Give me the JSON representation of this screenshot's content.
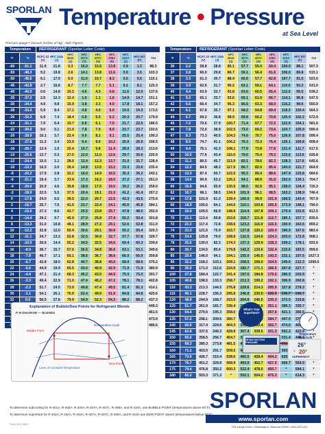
{
  "logo": {
    "text": "SPORLAN"
  },
  "title": {
    "part1": "Temperature",
    "dot": "•",
    "part2": "Pressure",
    "subtitle": "at Sea Level"
  },
  "legend": "Pressure gauge • Vacuum (inches of Hg) - Italic Figures",
  "columns_left": {
    "temp": "Temperature",
    "refrigerant": "REFRIGERANT",
    "code": "(Sporlan Letter Code)",
    "f": "°F",
    "c": "°C",
    "refs": [
      {
        "name": "HCFC 22",
        "code": "(V)"
      },
      {
        "name": "HFC 134a",
        "code": "(J)"
      },
      {
        "name": "HFC 404A",
        "code": "(S)"
      },
      {
        "name": "HFC 407A",
        "code": "(V)"
      },
      {
        "name": "HFC 407C",
        "code": "(N)"
      },
      {
        "name": "HFC 408A",
        "code": "(R)"
      },
      {
        "name": "HFC 410A",
        "code": "(Z)"
      },
      {
        "name": "HFO 507",
        "code": "(P)"
      },
      {
        "name": "744",
        "code": ""
      }
    ]
  },
  "columns_right": {
    "temp": "Temperature",
    "refrigerant": "REFRIGERANT",
    "code": "(Sporlan Letter Code)",
    "f": "°F",
    "c": "°C",
    "refs": [
      {
        "name": "HCFC 22",
        "code": "(V)"
      },
      {
        "name": "HFC 134a",
        "code": "(J)"
      },
      {
        "name": "HFC 404A",
        "code": "(S)"
      },
      {
        "name": "HFC 407A",
        "code": "(V)"
      },
      {
        "name": "HFC 407C",
        "code": "(N)"
      },
      {
        "name": "HFC 408A",
        "code": "(R)"
      },
      {
        "name": "HFC 410A",
        "code": "(Z)"
      },
      {
        "name": "HFO 507",
        "code": "(P)"
      },
      {
        "name": "744",
        "code": ""
      }
    ]
  },
  "rows_left": [
    [
      "-60",
      "-51.1",
      "11.9",
      "21.8",
      "0.3",
      "16.0",
      "15.6",
      "13.8",
      "0.9",
      "1.3",
      "88.3"
    ],
    [
      "-55",
      "-48.3",
      "9.2",
      "19.8",
      "2.6",
      "14.1",
      "13.8",
      "11.6",
      "0.9",
      "3.5",
      "103.3"
    ],
    [
      "-50",
      "-45.6",
      "6.1",
      "17.9",
      "5.0",
      "11.0",
      "10.7",
      "8.3",
      "5.5",
      "5.5",
      "115.1"
    ],
    [
      "-45",
      "-42.8",
      "2.7",
      "15.6",
      "8.7",
      "7.7",
      "7.7",
      "5.1",
      "9.1",
      "8.1",
      "125.3"
    ],
    [
      "-40",
      "-40.0",
      "0.6",
      "14.8",
      "10.2",
      "4.6",
      "4.3",
      "0.8",
      "11.6",
      "12.0",
      "137.6"
    ],
    [
      "-35",
      "-37.2",
      "2.6",
      "12.3",
      "12.4",
      "1.6",
      "1.1",
      "1.6",
      "14.9",
      "14.7",
      "151.1"
    ],
    [
      "-30",
      "-34.4",
      "4.9",
      "9.8",
      "15.9",
      "3.8",
      "3.3",
      "4.0",
      "17.8",
      "18.1",
      "167.2"
    ],
    [
      "-28",
      "-33.3",
      "5.9",
      "8.4",
      "17.1",
      "4.8",
      "4.0",
      "5.0",
      "19.0",
      "19.3",
      "173.5"
    ],
    [
      "-26",
      "-32.2",
      "6.9",
      "7.4",
      "18.4",
      "5.8",
      "5.0",
      "6.2",
      "20.3",
      "20.7",
      "179.9"
    ],
    [
      "-24",
      "-31.1",
      "7.9",
      "6.4",
      "19.7",
      "6.8",
      "6.1",
      "7.0",
      "21.7",
      "22.0",
      "186.5"
    ],
    [
      "-22",
      "-30.0",
      "9.0",
      "5.1",
      "21.0",
      "7.8",
      "7.0",
      "8.0",
      "23.7",
      "23.7",
      "192.6"
    ],
    [
      "-20",
      "-28.9",
      "10.1",
      "3.7",
      "22.4",
      "9.0",
      "8.1",
      "9.1",
      "25.5",
      "25.4",
      "199.3"
    ],
    [
      "-18",
      "-27.8",
      "11.2",
      "2.4",
      "23.9",
      "9.4",
      "9.0",
      "10.2",
      "26.9",
      "26.9",
      "206.5"
    ],
    [
      "-16",
      "-26.7",
      "12.4",
      "1.0",
      "25.4",
      "10.7",
      "9.8",
      "11.4",
      "28.0",
      "28.3",
      "213.6"
    ],
    [
      "-14",
      "-25.6",
      "13.7",
      "0.3",
      "27.0",
      "12.0",
      "11.0",
      "12.6",
      "29.7",
      "30.0",
      "220.9"
    ],
    [
      "-12",
      "-24.4",
      "15.0",
      "1.1",
      "28.6",
      "13.4",
      "12.3",
      "13.7",
      "31.0",
      "31.7",
      "228.4"
    ],
    [
      "-10",
      "-23.3",
      "16.5",
      "2.0",
      "30.4",
      "14.8",
      "13.5",
      "15.2",
      "33.3",
      "33.6",
      "235.4"
    ],
    [
      "-8",
      "-22.2",
      "17.9",
      "2.8",
      "32.2",
      "16.0",
      "14.9",
      "16.5",
      "35.3",
      "35.2",
      "243.1"
    ],
    [
      "-6",
      "-21.1",
      "19.4",
      "3.7",
      "33.9",
      "17.3",
      "16.2",
      "18.0",
      "37.2",
      "37.1",
      "251.0"
    ],
    [
      "-4",
      "-20.0",
      "20.9",
      "4.6",
      "35.8",
      "18.8",
      "17.5",
      "19.5",
      "39.2",
      "39.2",
      "259.0"
    ],
    [
      "-2",
      "-18.9",
      "22.5",
      "5.5",
      "37.5",
      "20.4",
      "19.1",
      "21.0",
      "41.2",
      "41.4",
      "267.2"
    ],
    [
      "0",
      "-17.8",
      "24.0",
      "6.5",
      "39.5",
      "22.0",
      "20.7",
      "22.5",
      "43.3",
      "43.5",
      "275.6"
    ],
    [
      "2",
      "-16.7",
      "25.7",
      "7.5",
      "41.5",
      "23.7",
      "22.4",
      "24.1",
      "45.6",
      "45.8",
      "284.1"
    ],
    [
      "4",
      "-15.6",
      "27.3",
      "8.6",
      "43.7",
      "25.5",
      "23.8",
      "25.7",
      "47.8",
      "48.0",
      "292.9"
    ],
    [
      "6",
      "-14.4",
      "29.2",
      "9.7",
      "45.9",
      "27.0",
      "25.8",
      "27.4",
      "50.2",
      "50.4",
      "301.8"
    ],
    [
      "8",
      "-13.3",
      "31.0",
      "10.8",
      "48.1",
      "28.9",
      "27.2",
      "29.1",
      "52.6",
      "52.8",
      "311.0"
    ],
    [
      "10",
      "-12.2",
      "32.8",
      "12.0",
      "50.4",
      "30.6",
      "29.1",
      "30.9",
      "55.2",
      "55.4",
      "320.3"
    ],
    [
      "12",
      "-11.1",
      "34.7",
      "13.2",
      "52.8",
      "32.5",
      "30.9",
      "32.7",
      "57.7",
      "57.8",
      "329.7"
    ],
    [
      "14",
      "-10.0",
      "36.6",
      "14.4",
      "55.2",
      "34.5",
      "32.5",
      "34.6",
      "60.4",
      "60.3",
      "339.6"
    ],
    [
      "16",
      "-8.9",
      "38.7",
      "15.7",
      "57.6",
      "36.5",
      "34.8",
      "36.6",
      "63.1",
      "63.1",
      "349.6"
    ],
    [
      "18",
      "-7.8",
      "40.7",
      "17.1",
      "60.1",
      "38.6",
      "36.7",
      "38.6",
      "66.0",
      "66.0",
      "359.8"
    ],
    [
      "20",
      "-6.7",
      "42.8",
      "18.5",
      "62.8",
      "40.7",
      "38.8",
      "40.6",
      "68.9",
      "68.9",
      "370.2"
    ],
    [
      "22",
      "-5.6",
      "44.9",
      "19.9",
      "65.5",
      "43.0",
      "40.9",
      "42.9",
      "71.9",
      "71.9",
      "380.9"
    ],
    [
      "24",
      "-4.4",
      "47.1",
      "21.4",
      "68.3",
      "45.2",
      "43.0",
      "44.9",
      "75.0",
      "75.0",
      "391.7"
    ],
    [
      "26",
      "-3.3",
      "49.4",
      "22.9",
      "71.0",
      "47.4",
      "45.2",
      "47.2",
      "78.1",
      "78.1",
      "402.8"
    ],
    [
      "28",
      "-2.2",
      "51.7",
      "24.5",
      "73.9",
      "49.8",
      "47.4",
      "49.5",
      "81.4",
      "81.3",
      "414.1"
    ],
    [
      "30",
      "-1.1",
      "54.1",
      "26.1",
      "76.9",
      "52.4",
      "49.9",
      "51.9",
      "84.8",
      "84.8",
      "425.6"
    ],
    [
      "32",
      "0.0",
      "56.5",
      "27.8",
      "79.9",
      "54.9",
      "52.3",
      "54.3",
      "88.2",
      "88.2",
      "437.3"
    ],
    [
      "34",
      "1.1",
      "59.0",
      "29.5",
      "83.0",
      "57.5",
      "54.7",
      "56.7",
      "91.6",
      "91.6",
      "449.3"
    ],
    [
      "36",
      "2.2",
      "61.5",
      "31.3",
      "86.2",
      "60.3",
      "57.3",
      "59.3",
      "95.3",
      "95.3",
      "461.5"
    ],
    [
      "38",
      "3.3",
      "64.1",
      "33.1",
      "89.4",
      "63.0",
      "59.9",
      "61.9",
      "99.0",
      "99.0",
      "473.9"
    ],
    [
      "40",
      "4.4",
      "66.8",
      "35.0",
      "92.8",
      "65.9",
      "62.6",
      "64.6",
      "102.8",
      "102.8",
      "486.6"
    ]
  ],
  "rows_right": [
    [
      "36",
      "2.2",
      "58.8",
      "28.8",
      "85.1",
      "57.7",
      "55.0",
      "60.4",
      "104.0",
      "88.1",
      "507.3"
    ],
    [
      "37",
      "2.8",
      "60.0",
      "29.8",
      "86.7",
      "59.1",
      "56.4",
      "61.6",
      "106.0",
      "89.8",
      "515.1"
    ],
    [
      "38",
      "3.3",
      "61.3",
      "30.7",
      "88.4",
      "60.6",
      "57.7",
      "62.8",
      "107.7",
      "91.5",
      "523.0"
    ],
    [
      "39",
      "3.9",
      "62.6",
      "31.7",
      "90.2",
      "62.1",
      "59.1",
      "64.1",
      "110.0",
      "93.3",
      "531.0"
    ],
    [
      "40",
      "4.4",
      "63.9",
      "32.7",
      "91.8",
      "63.6",
      "60.5",
      "65.4",
      "112.0",
      "95.0",
      "539.2"
    ],
    [
      "41",
      "5.0",
      "65.1",
      "33.7",
      "93.6",
      "65.1",
      "61.9",
      "66.7",
      "114.1",
      "96.8",
      "547.5"
    ],
    [
      "42",
      "5.6",
      "66.4",
      "34.7",
      "95.3",
      "66.6",
      "63.3",
      "68.0",
      "116.2",
      "98.6",
      "555.9"
    ],
    [
      "43",
      "6.1",
      "67.8",
      "35.7",
      "97.1",
      "68.2",
      "64.8",
      "69.4",
      "118.3",
      "100.4",
      "564.3"
    ],
    [
      "44",
      "6.7",
      "69.2",
      "36.8",
      "98.9",
      "69.8",
      "66.2",
      "70.8",
      "120.4",
      "102.2",
      "572.9"
    ],
    [
      "45",
      "7.2",
      "70.6",
      "37.9",
      "100.7",
      "71.4",
      "67.7",
      "72.2",
      "122.6",
      "104.1",
      "581.6"
    ],
    [
      "46",
      "7.8",
      "72.0",
      "38.9",
      "102.5",
      "73.0",
      "69.2",
      "73.6",
      "124.7",
      "105.9",
      "590.4"
    ],
    [
      "47",
      "8.3",
      "73.3",
      "40.0",
      "104.3",
      "74.6",
      "70.7",
      "75.0",
      "126.9",
      "107.8",
      "599.4"
    ],
    [
      "48",
      "8.9",
      "74.7",
      "41.1",
      "106.2",
      "76.3",
      "72.3",
      "76.4",
      "129.1",
      "109.8",
      "608.4"
    ],
    [
      "49",
      "9.4",
      "76.1",
      "42.3",
      "108.1",
      "77.9",
      "73.8",
      "77.8",
      "131.4",
      "111.7",
      "617.5"
    ],
    [
      "50",
      "10.0",
      "77.6",
      "43.4",
      "110.0",
      "79.6",
      "75.4",
      "79.3",
      "133.6",
      "113.6",
      "626.8"
    ],
    [
      "52",
      "11.1",
      "80.5",
      "45.7",
      "113.9",
      "83.1",
      "78.6",
      "82.3",
      "138.3",
      "117.6",
      "645.6"
    ],
    [
      "54",
      "12.2",
      "84.5",
      "48.2",
      "117.9",
      "86.7",
      "82.0",
      "85.4",
      "143.0",
      "121.7",
      "664.9"
    ],
    [
      "56",
      "13.3",
      "87.4",
      "50.7",
      "122.0",
      "90.3",
      "85.4",
      "88.6",
      "147.9",
      "125.8",
      "684.6"
    ],
    [
      "58",
      "14.4",
      "90.9",
      "53.2",
      "126.2",
      "94.1",
      "88.9",
      "91.8",
      "152.9",
      "130.1",
      "704.7"
    ],
    [
      "60",
      "15.6",
      "94.6",
      "55.9",
      "130.5",
      "98.0",
      "92.5",
      "95.1",
      "158.0",
      "134.4",
      "725.3"
    ],
    [
      "62",
      "16.7",
      "98.1",
      "58.5",
      "134.9",
      "101.9",
      "96.1",
      "98.5",
      "163.2",
      "138.9",
      "746.4"
    ],
    [
      "64",
      "17.8",
      "101.9",
      "61.3",
      "139.4",
      "106.0",
      "99.9",
      "101.9",
      "168.5",
      "143.4",
      "767.9"
    ],
    [
      "66",
      "18.9",
      "105.6",
      "64.1",
      "144.0",
      "110.1",
      "103.8",
      "105.5",
      "173.9",
      "148.1",
      "790.0"
    ],
    [
      "68",
      "20.0",
      "109.5",
      "66.9",
      "148.8",
      "114.4",
      "107.8",
      "109.1",
      "179.4",
      "152.8",
      "812.5"
    ],
    [
      "70",
      "21.1",
      "113.4",
      "69.8",
      "153.6",
      "118.7",
      "111.8",
      "112.7",
      "185.1",
      "157.7",
      "835.6"
    ],
    [
      "72",
      "22.2",
      "117.4",
      "72.8",
      "158.6",
      "123.2",
      "116.0",
      "116.5",
      "190.9",
      "162.6",
      "859.2"
    ],
    [
      "74",
      "23.3",
      "121.5",
      "75.9",
      "163.7",
      "127.8",
      "120.2",
      "120.4",
      "196.9",
      "167.6",
      "883.4"
    ],
    [
      "76",
      "24.4",
      "125.8",
      "79.0",
      "168.9",
      "132.5",
      "124.6",
      "124.3",
      "203.0",
      "172.8",
      "908.1"
    ],
    [
      "78",
      "25.6",
      "130.0",
      "82.3",
      "174.3",
      "137.3",
      "129.0",
      "128.3",
      "209.2",
      "178.1",
      "933.6"
    ],
    [
      "80",
      "26.7",
      "134.5",
      "85.6",
      "179.8",
      "142.2",
      "133.6",
      "132.4",
      "215.6",
      "183.5",
      "959.6"
    ],
    [
      "85",
      "29.4",
      "146.0",
      "94.1",
      "194.1",
      "155.0",
      "145.5",
      "143.2",
      "232.1",
      "197.5",
      "1027.3"
    ],
    [
      "90",
      "32.2",
      "158.2",
      "103.1",
      "209.1",
      "168.5",
      "158.0",
      "154.5",
      "249.6",
      "212.3",
      "1099.6"
    ],
    [
      "95",
      "35.0",
      "171.0",
      "112.6",
      "224.9",
      "182.7",
      "171.1",
      "166.5",
      "267.8",
      "227.7",
      "*"
    ],
    [
      "100",
      "37.8",
      "184.4",
      "122.7",
      "241.4",
      "197.6",
      "184.8",
      "179.0",
      "286.9",
      "243.9",
      "*"
    ],
    [
      "105",
      "40.6",
      "198.5",
      "133.3",
      "258.7",
      "213.3",
      "199.2",
      "192.1",
      "306.9",
      "260.8",
      "*"
    ],
    [
      "110",
      "43.3",
      "213.3",
      "144.5",
      "276.8",
      "229.6",
      "214.3",
      "205.9",
      "327.8",
      "278.3",
      "*"
    ],
    [
      "115",
      "46.1",
      "228.7",
      "156.3",
      "295.8",
      "246.8",
      "230.0",
      "220.3",
      "349.7",
      "296.7",
      "*"
    ],
    [
      "120",
      "48.9",
      "244.9",
      "168.7",
      "315.6",
      "264.8",
      "246.5",
      "235.3",
      "372.5",
      "315.8",
      "*"
    ],
    [
      "125",
      "51.7",
      "261.9",
      "181.7",
      "336.4",
      "283.6",
      "263.6",
      "251.1",
      "396.3",
      "335.7",
      "*"
    ],
    [
      "130",
      "54.4",
      "279.6",
      "195.3",
      "358.0",
      "303.2",
      "281.4",
      "267.6",
      "421.1",
      "356.5",
      "*"
    ],
    [
      "135",
      "57.2",
      "298.1",
      "209.6",
      "380.7",
      "323.7",
      "300.0",
      "284.7",
      "447.0",
      "378.1",
      "*"
    ],
    [
      "140",
      "60.0",
      "317.4",
      "224.6",
      "404.3",
      "345.1",
      "319.4",
      "302.7",
      "474.0",
      "400.5",
      "*"
    ],
    [
      "145",
      "62.8",
      "337.5",
      "240.3",
      "428.9",
      "367.4",
      "339.5",
      "321.3",
      "502.2",
      "423.9",
      "*"
    ],
    [
      "150",
      "65.6",
      "358.5",
      "256.7",
      "454.7",
      "390.7",
      "360.5",
      "340.8",
      "531.4",
      "448.1",
      "*"
    ],
    [
      "155",
      "68.3",
      "380.3",
      "273.8",
      "481.5",
      "414.9",
      "382.2",
      "361.1",
      "561.9",
      "473.4",
      "*"
    ],
    [
      "160",
      "71.1",
      "403.0",
      "291.7",
      "509.5",
      "440.2",
      "404.9",
      "382.2",
      "593.6",
      "499.6",
      "*"
    ],
    [
      "165",
      "73.9",
      "426.7",
      "310.4",
      "538.6",
      "466.5",
      "428.4",
      "404.2",
      "626.5",
      "526.7",
      "*"
    ],
    [
      "170",
      "76.7",
      "451.2",
      "329.9",
      "568.9",
      "493.9",
      "452.7",
      "427.0",
      "660.7",
      "554.9",
      "*"
    ],
    [
      "175",
      "79.4",
      "476.8",
      "350.2",
      "600.3",
      "522.4",
      "478.0",
      "450.7",
      "*",
      "584.1",
      "*"
    ],
    [
      "180",
      "82.2",
      "503.3",
      "371.3",
      "*",
      "552.1",
      "504.2",
      "475.3",
      "*",
      "614.3",
      "*"
    ]
  ],
  "footnote": "* = exceeds critical temperature",
  "blends": {
    "title": "Explanation of Bubble/Dew Points for Refrigerant Blends",
    "diagram_title": "P-H DIAGRAM — BLENDS",
    "bubble": "Bubble Point",
    "dew": "Dew Point",
    "cycle": "Refrigeration Cycle",
    "isotherm": "Lines of Constant Temperature"
  },
  "subcool_note": "To determine subcooling for R-401A, R-402A, R-404A, R-407A, R-407C, R-408A, and R-410A, use BUBBLE POINT (temperatures above 50°F)",
  "superheat_note": "To determine superheat for R-401A, R-402A, R-404A, R-407A, R-407C, R-408A, and R-410A use DEW POINT values (temperatures below 50°F)",
  "superheat_diagram": {
    "question": "What's Your Superheat?",
    "suction": "OBTAIN SUCTION PRESSURE",
    "temp_read": "Temperature from bulb",
    "sat_temp": "26°",
    "minus": "-",
    "result": "20°",
    "label": "SUPERHEAT"
  },
  "brand": "SPORLAN",
  "url": "www.sporlan.com",
  "address": "206 Lange Drive • Washington, Missouri 63090 • 636-239-1111",
  "fineprint": "Form 30-1 0819",
  "colors": {
    "navy": "#12357a",
    "blue": "#2e59a8",
    "red": "#c8141a",
    "r22": "#e6e1ee",
    "r134a": "#cde6f5",
    "r404a": "#f8e276",
    "r407a": "#a4d3b4",
    "r407c": "#e1e35c",
    "r408a": "#f1b0c6",
    "r410a": "#9fd0e0",
    "r507": "#b8cae6",
    "r744": "#ececec"
  }
}
